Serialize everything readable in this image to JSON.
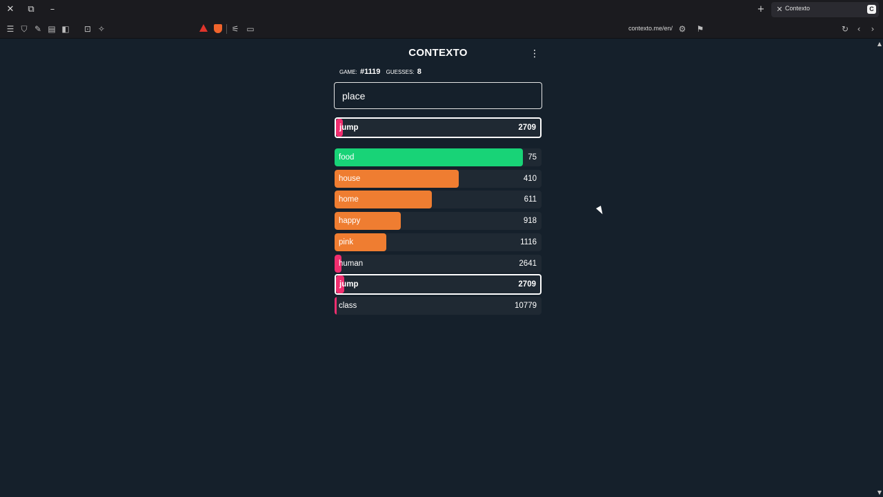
{
  "browser": {
    "tab_title": "Contexto",
    "tab_favicon": "C",
    "url": "contexto.me/en/",
    "titlebar_icons": [
      "close-icon",
      "restore-icon",
      "minimize-icon",
      "new-tab-icon"
    ],
    "toolbar_icons": [
      "menu-icon",
      "shield-icon",
      "puzzle-icon",
      "tabs-icon",
      "sidebar-icon",
      "screenshot-icon",
      "extensions-icon",
      "brave-rewards-icon",
      "brave-shield-icon",
      "translate-icon",
      "reader-icon",
      "site-settings-icon",
      "bookmark-icon",
      "reload-icon",
      "back-icon",
      "forward-icon"
    ]
  },
  "game": {
    "title": "CONTEXTO",
    "game_label": "GAME:",
    "game_number": "#1119",
    "guesses_label": "GUESSES:",
    "guesses_count": "8",
    "input_value": "place",
    "last_guess": {
      "word": "jump",
      "distance": "2709"
    },
    "guesses": [
      {
        "word": "food",
        "distance": "75",
        "color": "#18d377",
        "fill": 0.91
      },
      {
        "word": "house",
        "distance": "410",
        "color": "#ef7d31",
        "fill": 0.6
      },
      {
        "word": "home",
        "distance": "611",
        "color": "#ef7d31",
        "fill": 0.47
      },
      {
        "word": "happy",
        "distance": "918",
        "color": "#ef7d31",
        "fill": 0.32
      },
      {
        "word": "pink",
        "distance": "1116",
        "color": "#ef7d31",
        "fill": 0.25
      },
      {
        "word": "human",
        "distance": "2641",
        "color": "#f02e6f",
        "fill": 0.04
      },
      {
        "word": "jump",
        "distance": "2709",
        "color": "#f02e6f",
        "fill": 0.04,
        "highlight": true
      },
      {
        "word": "class",
        "distance": "10779",
        "color": "#f02e6f",
        "fill": 0.01
      }
    ]
  },
  "colors": {
    "close": "#18d377",
    "medium": "#ef7d31",
    "far": "#f02e6f",
    "background": "#15202b"
  }
}
